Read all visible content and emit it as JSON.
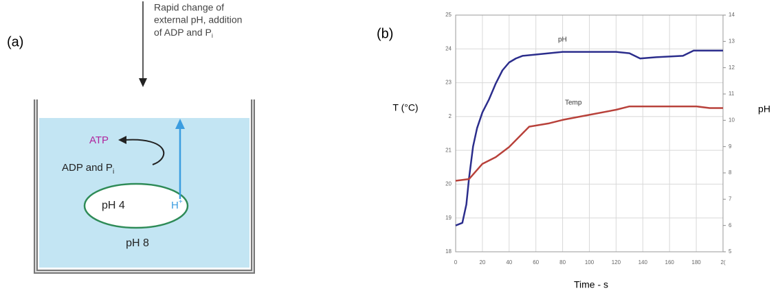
{
  "panel_a": {
    "label": "(a)",
    "note": {
      "lines": [
        "Rapid change of",
        "external pH, addition",
        "of ADP and P"
      ],
      "subscript": "i"
    },
    "atp": "ATP",
    "adp": {
      "text": "ADP and P",
      "subscript": "i"
    },
    "inner": "pH 4",
    "proton": {
      "text": "H",
      "superscript": "+"
    },
    "outer": "pH 8"
  },
  "chart_data": {
    "type": "line",
    "panel_label": "(b)",
    "ylabel": "T (°C)",
    "y2label": "pH",
    "xlabel": "Time - s",
    "xlim": [
      0,
      200
    ],
    "xticks": [
      0,
      20,
      40,
      60,
      80,
      100,
      120,
      140,
      160,
      180,
      {
        "value": 200,
        "label": "2("
      }
    ],
    "ylim": [
      18,
      25
    ],
    "yticks": [
      18,
      19,
      20,
      21,
      {
        "value": 22,
        "label": "2"
      },
      23,
      24,
      25
    ],
    "y2lim": [
      5,
      14
    ],
    "y2ticks": [
      5,
      6,
      7,
      8,
      9,
      10,
      11,
      12,
      13,
      14
    ],
    "grid": true,
    "series": [
      {
        "name": "pH",
        "color": "#2b2d8c",
        "axis": "y2",
        "x": [
          0,
          5,
          8,
          10,
          13,
          16,
          20,
          25,
          30,
          35,
          40,
          45,
          50,
          60,
          80,
          100,
          120,
          130,
          138,
          150,
          170,
          178,
          200
        ],
        "values": [
          6.0,
          6.1,
          6.8,
          7.8,
          9.0,
          9.7,
          10.3,
          10.8,
          11.4,
          11.9,
          12.2,
          12.35,
          12.45,
          12.5,
          12.6,
          12.6,
          12.6,
          12.55,
          12.35,
          12.4,
          12.45,
          12.65,
          12.65
        ]
      },
      {
        "name": "Temp",
        "color": "#b8413a",
        "x": [
          0,
          10,
          20,
          30,
          40,
          50,
          55,
          70,
          80,
          100,
          120,
          130,
          160,
          180,
          190,
          200
        ],
        "values": [
          20.1,
          20.15,
          20.6,
          20.8,
          21.1,
          21.5,
          21.7,
          21.8,
          21.9,
          22.05,
          22.2,
          22.3,
          22.3,
          22.3,
          22.25,
          22.25
        ]
      }
    ]
  }
}
